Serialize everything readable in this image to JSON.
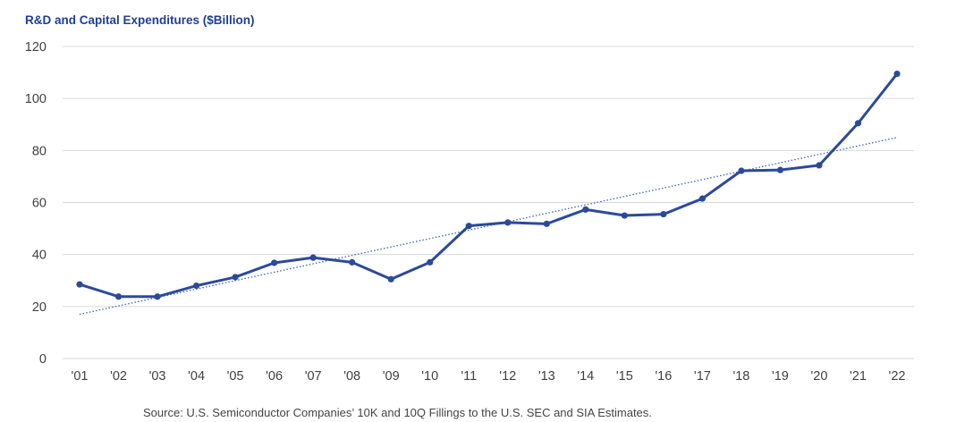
{
  "chart_data": {
    "type": "line",
    "title": "R&D and Capital Expenditures ($Billion)",
    "categories": [
      "'01",
      "'02",
      "'03",
      "'04",
      "'05",
      "'06",
      "'07",
      "'08",
      "'09",
      "'10",
      "'11",
      "'12",
      "'13",
      "'14",
      "'15",
      "'16",
      "'17",
      "'18",
      "'19",
      "'20",
      "'21",
      "'22"
    ],
    "series": [
      {
        "values": [
          28.5,
          23.8,
          23.8,
          28,
          31.3,
          36.8,
          38.8,
          37,
          30.5,
          37,
          51,
          52.3,
          51.8,
          57.3,
          55,
          55.5,
          61.5,
          72.2,
          72.5,
          74.3,
          90.5,
          109.5
        ]
      }
    ],
    "trendline": {
      "style": "dotted",
      "start": 17,
      "end": 85
    },
    "ylim": [
      0,
      120
    ],
    "yticks": [
      0,
      20,
      40,
      60,
      80,
      100,
      120
    ],
    "xlabel": "",
    "ylabel": "",
    "grid": true,
    "colors": {
      "line": "#2b4a9a",
      "trend": "#3a63b8",
      "grid": "#d9d9d9",
      "title": "#1f3f94"
    }
  },
  "source": "Source: U.S. Semiconductor Companies’ 10K and 10Q Fillings to the U.S. SEC and SIA Estimates."
}
